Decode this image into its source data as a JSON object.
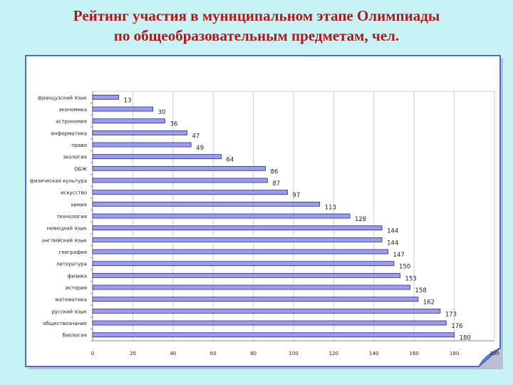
{
  "page": {
    "title_line1": "Рейтинг участия в муниципальном этапе Олимпиады",
    "title_line2": "по общеобразовательным предметам, чел."
  },
  "colors": {
    "background": "#c6f3f6",
    "title": "#b01818",
    "bar_fill": "#9a9cf0",
    "bar_stroke": "#2a2a8c",
    "frame_border": "#4a6fcf",
    "curl": "#5b84e6"
  },
  "chart_data": {
    "type": "bar",
    "orientation": "horizontal",
    "categories": [
      "французский язык",
      "экономика",
      "астрономия",
      "информатика",
      "право",
      "экология",
      "ОБЖ",
      "физическая культура",
      "искусство",
      "химия",
      "технология",
      "немецкий язык",
      "английский язык",
      "география",
      "литература",
      "физика",
      "история",
      "математика",
      "русский язык",
      "обществознание",
      "биология"
    ],
    "values": [
      13,
      30,
      36,
      47,
      49,
      64,
      86,
      87,
      97,
      113,
      128,
      144,
      144,
      147,
      150,
      153,
      158,
      162,
      173,
      176,
      180
    ],
    "xlim": [
      0,
      200
    ],
    "xticks": [
      0,
      20,
      40,
      60,
      80,
      100,
      120,
      140,
      160,
      180,
      200
    ],
    "grid": "vertical",
    "data_labels": true,
    "legend": "none"
  }
}
